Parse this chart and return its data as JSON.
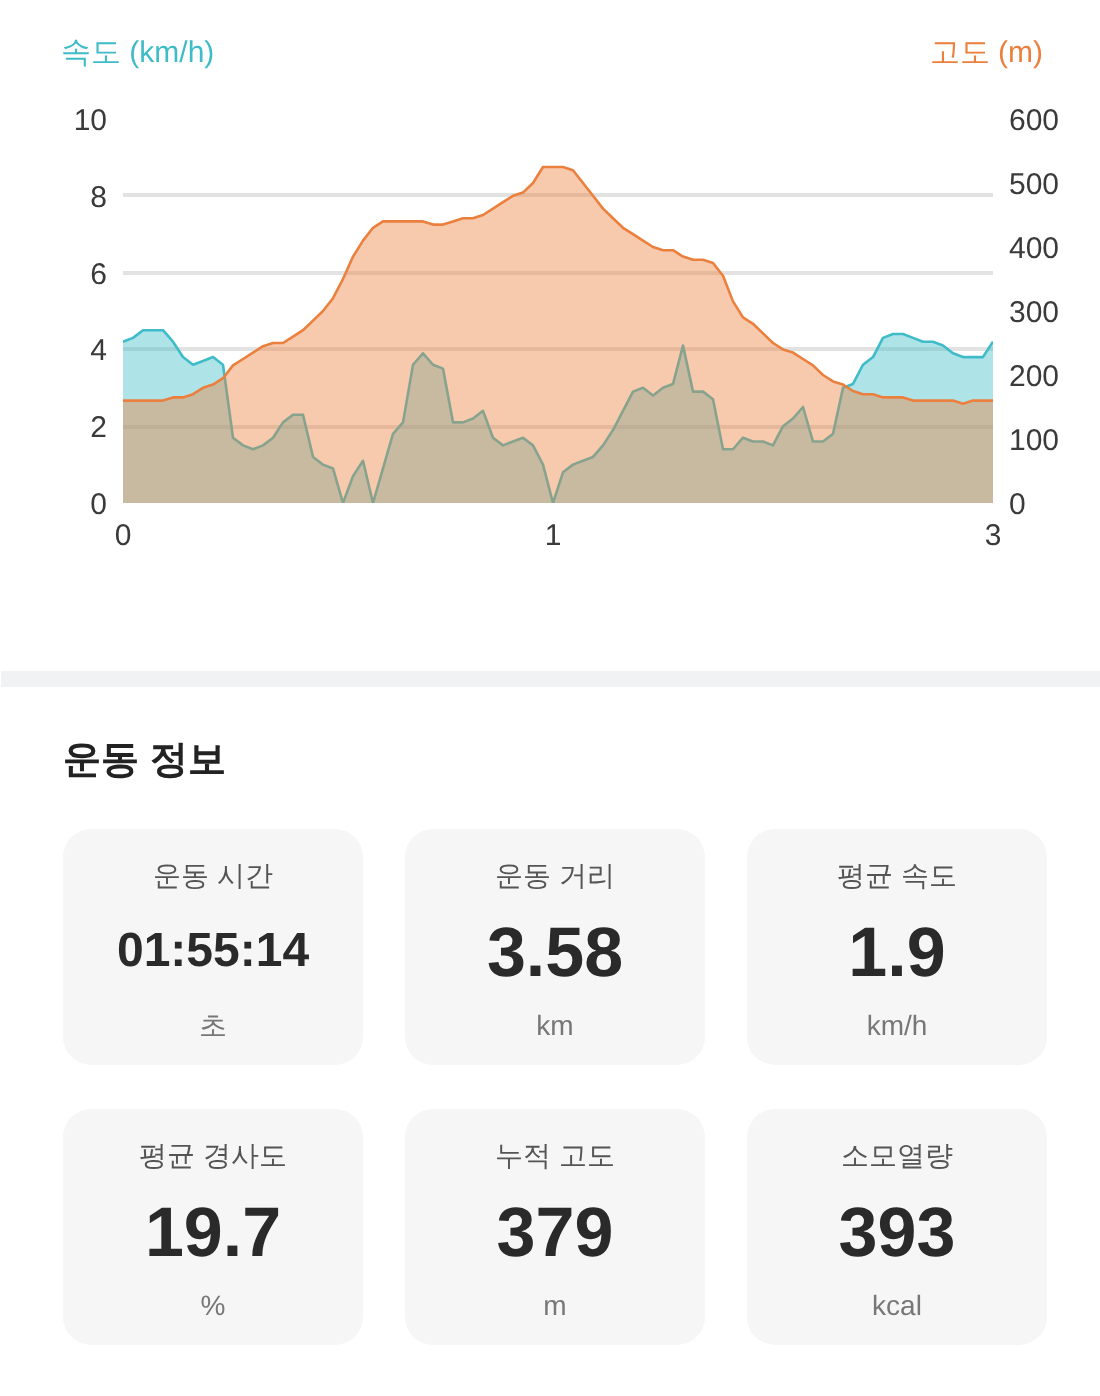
{
  "chart_data": [
    {
      "type": "area",
      "ylabel": "속도 (km/h)",
      "y2label": "고도 (m)",
      "categories": [
        "0",
        null,
        null,
        null,
        null,
        null,
        null,
        null,
        null,
        null,
        null,
        null,
        null,
        null,
        null,
        null,
        null,
        null,
        null,
        null,
        null,
        null,
        null,
        null,
        null,
        null,
        null,
        null,
        null,
        null,
        null,
        null,
        null,
        null,
        null,
        null,
        null,
        null,
        null,
        null,
        null,
        null,
        null,
        "1",
        null,
        null,
        null,
        null,
        null,
        null,
        null,
        null,
        null,
        null,
        null,
        null,
        null,
        null,
        null,
        null,
        null,
        null,
        null,
        null,
        null,
        null,
        null,
        null,
        null,
        null,
        null,
        null,
        null,
        null,
        null,
        null,
        null,
        null,
        null,
        null,
        null,
        null,
        null,
        null,
        null,
        null,
        null,
        "3"
      ],
      "series": [
        {
          "color": "#3fbcc8",
          "values": [
            4.2,
            4.3,
            4.5,
            4.5,
            4.5,
            4.2,
            3.8,
            3.6,
            3.7,
            3.8,
            3.6,
            1.7,
            1.5,
            1.4,
            1.5,
            1.7,
            2.1,
            2.3,
            2.3,
            1.2,
            1.0,
            0.9,
            0,
            0.7,
            1.1,
            0,
            0.9,
            1.8,
            2.1,
            3.6,
            3.9,
            3.6,
            3.5,
            2.1,
            2.1,
            2.2,
            2.4,
            1.7,
            1.5,
            1.6,
            1.7,
            1.5,
            1.0,
            0,
            0.8,
            1.0,
            1.1,
            1.2,
            1.5,
            1.9,
            2.4,
            2.9,
            3.0,
            2.8,
            3.0,
            3.1,
            4.1,
            2.9,
            2.9,
            2.7,
            1.4,
            1.4,
            1.7,
            1.6,
            1.6,
            1.5,
            2.0,
            2.2,
            2.5,
            1.6,
            1.6,
            1.8,
            3.0,
            3.1,
            3.6,
            3.8,
            4.3,
            4.4,
            4.4,
            4.3,
            4.2,
            4.2,
            4.1,
            3.9,
            3.8,
            3.8,
            3.8,
            4.2
          ]
        },
        {
          "color": "#eb803e",
          "axis": "y2",
          "values": [
            160,
            160,
            160,
            160,
            160,
            165,
            165,
            170,
            180,
            185,
            195,
            215,
            225,
            235,
            245,
            250,
            250,
            260,
            270,
            285,
            300,
            320,
            350,
            385,
            410,
            430,
            440,
            440,
            440,
            440,
            440,
            435,
            435,
            440,
            445,
            445,
            450,
            460,
            470,
            480,
            485,
            500,
            525,
            525,
            525,
            520,
            500,
            480,
            460,
            445,
            430,
            420,
            410,
            400,
            395,
            395,
            385,
            380,
            380,
            375,
            355,
            315,
            290,
            280,
            265,
            250,
            240,
            235,
            225,
            215,
            200,
            190,
            185,
            175,
            170,
            170,
            165,
            165,
            165,
            160,
            160,
            160,
            160,
            160,
            155,
            160,
            160,
            160
          ]
        }
      ],
      "ylim": [
        0,
        10
      ],
      "yticks": [
        0,
        2,
        4,
        6,
        8,
        10
      ],
      "y2lim": [
        0,
        600
      ],
      "y2ticks": [
        0,
        100,
        200,
        300,
        400,
        500,
        600
      ],
      "grid": "y"
    },
    {
      "type": "other",
      "title": "운동 정보",
      "annotations": [
        "운동 시간",
        "01:55:14",
        "초",
        "운동 거리",
        "3.58",
        "km",
        "평균 속도",
        "1.9",
        "km/h",
        "평균 경사도",
        "19.7",
        "%",
        "누적 고도",
        "379",
        "m",
        "소모열량",
        "393",
        "kcal"
      ]
    }
  ]
}
